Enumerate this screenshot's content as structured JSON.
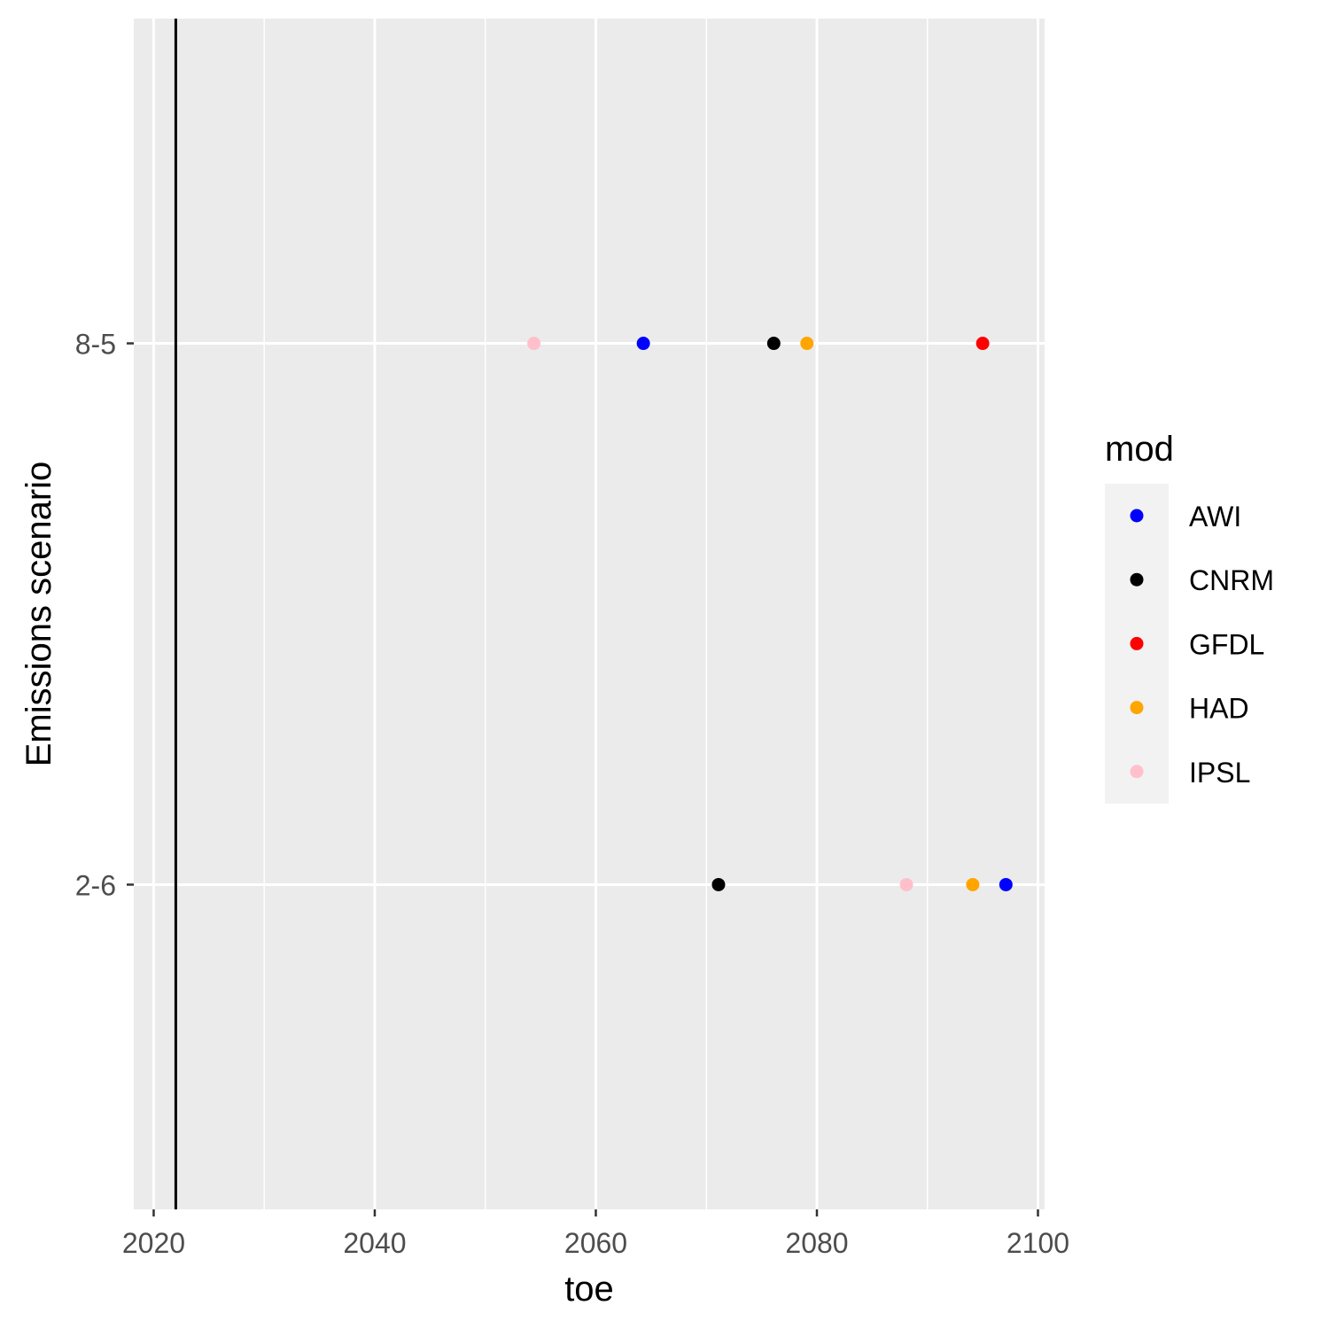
{
  "chart_data": {
    "type": "scatter",
    "xlabel": "toe",
    "ylabel": "Emissions scenario",
    "xlim": [
      2018.2,
      2100.6
    ],
    "x_ticks": [
      2020,
      2040,
      2060,
      2080,
      2100
    ],
    "x_minor_ticks": [
      2030,
      2050,
      2070,
      2090
    ],
    "categories": [
      "2-6",
      "8-5"
    ],
    "y_range": [
      0.4,
      2.6
    ],
    "reference_line": {
      "orientation": "vertical",
      "x": 2022,
      "color": "#000000"
    },
    "legend": {
      "title": "mod",
      "placement": "right"
    },
    "series": [
      {
        "name": "AWI",
        "color": "#0000ff",
        "points": [
          {
            "y": "8-5",
            "x": 2064.3
          },
          {
            "y": "2-6",
            "x": 2097.1
          }
        ]
      },
      {
        "name": "CNRM",
        "color": "#000000",
        "points": [
          {
            "y": "8-5",
            "x": 2076.1
          },
          {
            "y": "2-6",
            "x": 2071.1
          }
        ]
      },
      {
        "name": "GFDL",
        "color": "#ff0000",
        "points": [
          {
            "y": "8-5",
            "x": 2095.0
          }
        ]
      },
      {
        "name": "HAD",
        "color": "#ffa500",
        "points": [
          {
            "y": "8-5",
            "x": 2079.1
          },
          {
            "y": "2-6",
            "x": 2094.1
          }
        ]
      },
      {
        "name": "IPSL",
        "color": "#ffc0cb",
        "points": [
          {
            "y": "8-5",
            "x": 2054.4
          },
          {
            "y": "2-6",
            "x": 2088.1
          }
        ]
      }
    ],
    "panel_background": "#ebebeb",
    "grid": true
  }
}
